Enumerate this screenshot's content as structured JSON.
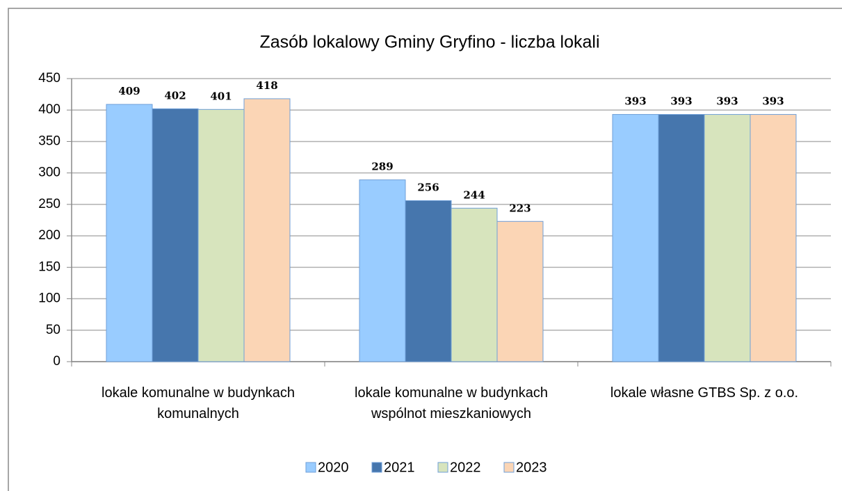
{
  "chart_data": {
    "type": "bar",
    "title": "Zasób lokalowy Gminy Gryfino - liczba lokali",
    "categories": [
      "lokale komunalne w budynkach komunalnych",
      "lokale komunalne w budynkach wspólnot mieszkaniowych",
      "lokale własne GTBS Sp. z o.o."
    ],
    "series": [
      {
        "name": "2020",
        "color": "#99ccff",
        "values": [
          409,
          289,
          393
        ]
      },
      {
        "name": "2021",
        "color": "#4676ad",
        "values": [
          402,
          256,
          393
        ]
      },
      {
        "name": "2022",
        "color": "#d7e4bd",
        "values": [
          401,
          244,
          393
        ]
      },
      {
        "name": "2023",
        "color": "#fbd5b5",
        "values": [
          418,
          223,
          393
        ]
      }
    ],
    "ylim": [
      0,
      450
    ],
    "yticks": [
      0,
      50,
      100,
      150,
      200,
      250,
      300,
      350,
      400,
      450
    ],
    "grid": true,
    "legend": "bottom"
  }
}
